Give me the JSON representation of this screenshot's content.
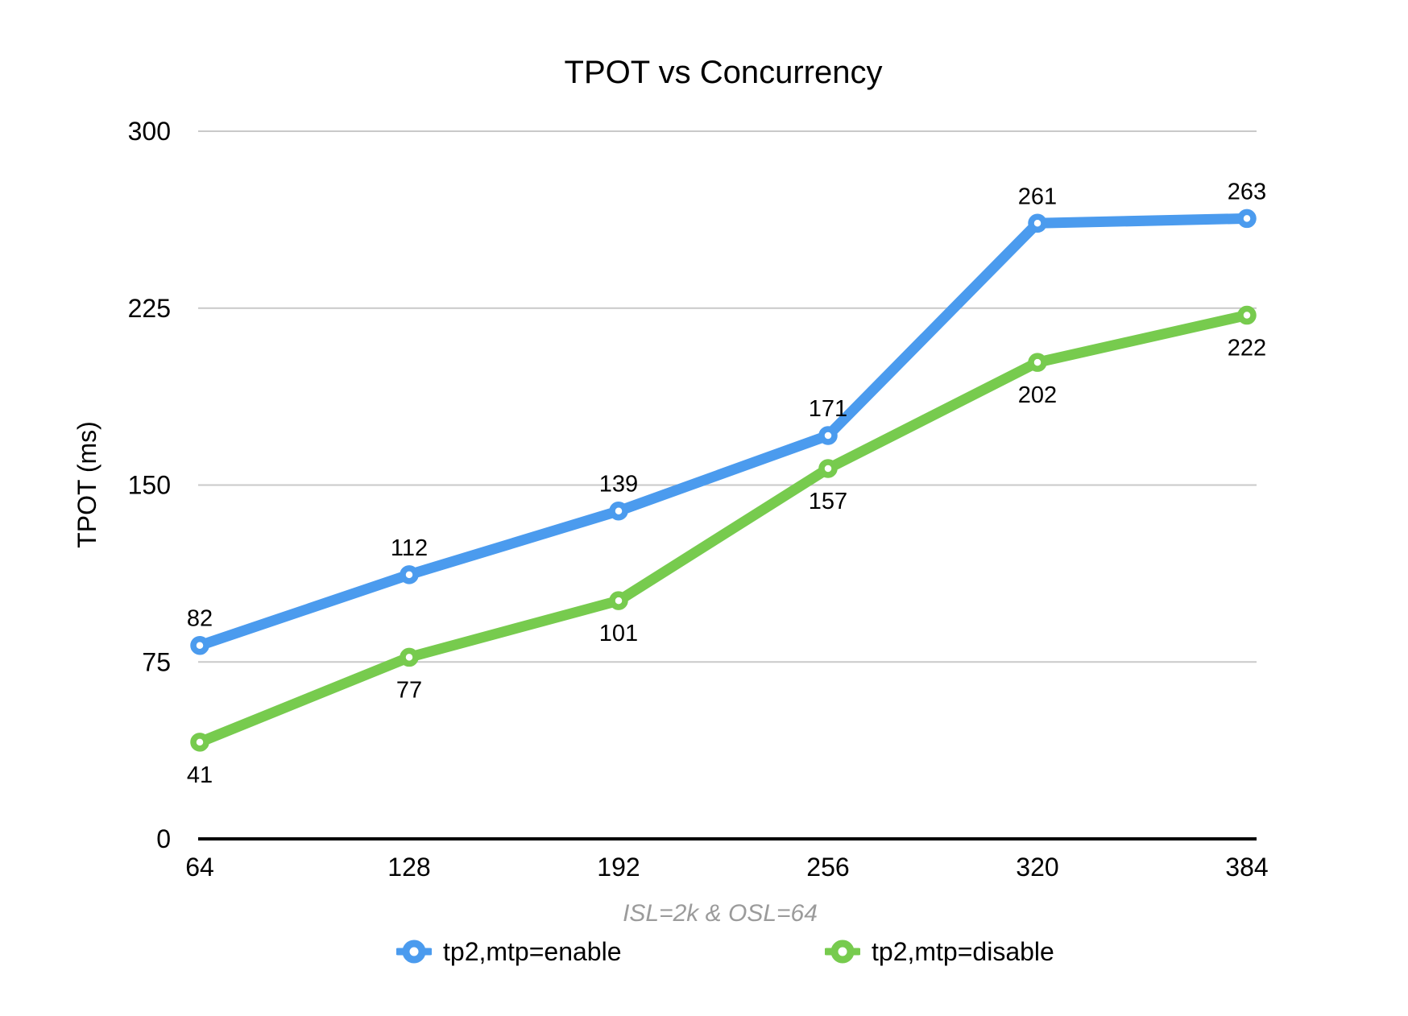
{
  "title": "TPOT vs Concurrency",
  "subtitle": "ISL=2k & OSL=64",
  "chart_data": {
    "type": "line",
    "title": "TPOT vs Concurrency",
    "subtitle": "ISL=2k & OSL=64",
    "xlabel": "",
    "ylabel": "TPOT (ms)",
    "categories": [
      "64",
      "128",
      "192",
      "256",
      "320",
      "384"
    ],
    "series": [
      {
        "name": "tp2,mtp=enable",
        "color": "#4B9BEE",
        "values": [
          82,
          112,
          139,
          171,
          261,
          263
        ],
        "label_position": "above"
      },
      {
        "name": "tp2,mtp=disable",
        "color": "#77CB4E",
        "values": [
          41,
          77,
          101,
          157,
          202,
          222
        ],
        "label_position": "below"
      }
    ],
    "ylim": [
      0,
      300
    ],
    "yticks": [
      0,
      75,
      150,
      225,
      300
    ],
    "grid": true,
    "legend_position": "bottom"
  },
  "colors": {
    "grid_line": "#C9C9C9",
    "axis_line": "#000000",
    "data_label": "#000000",
    "tick_label": "#000000",
    "subtitle_gray": "#9B9B9B",
    "background": "#FFFFFF"
  }
}
